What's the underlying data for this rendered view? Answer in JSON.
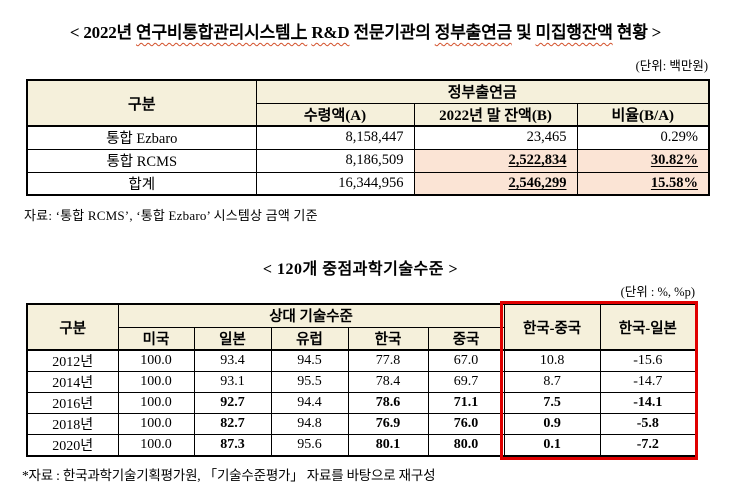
{
  "table1": {
    "title_segments": [
      {
        "text": "< 2022년 ",
        "wavy": false
      },
      {
        "text": "연구비통합관리시스템上",
        "wavy": true
      },
      {
        "text": " ",
        "wavy": false
      },
      {
        "text": "R&D",
        "wavy": true
      },
      {
        "text": " 전문기관의 ",
        "wavy": false
      },
      {
        "text": "정부출연금",
        "wavy": true
      },
      {
        "text": " 및 ",
        "wavy": false
      },
      {
        "text": "미집행잔액",
        "wavy": true
      },
      {
        "text": " 현황 >",
        "wavy": false
      }
    ],
    "unit": "(단위: 백만원)",
    "headers": {
      "gubun": "구분",
      "group": "정부출연금",
      "received": "수령액(A)",
      "balance": "2022년 말 잔액(B)",
      "ratio": "비율(B/A)"
    },
    "rows": [
      {
        "label": "통합 Ezbaro",
        "cells": [
          {
            "v": "8,158,447"
          },
          {
            "v": "23,465"
          },
          {
            "v": "0.29%"
          }
        ]
      },
      {
        "label": "통합 RCMS",
        "cells": [
          {
            "v": "8,186,509"
          },
          {
            "v": "2,522,834",
            "hl": true
          },
          {
            "v": "30.82%",
            "hl": true
          }
        ]
      },
      {
        "label": "합계",
        "cells": [
          {
            "v": "16,344,956"
          },
          {
            "v": "2,546,299",
            "hl": true
          },
          {
            "v": "15.58%",
            "hl": true
          }
        ]
      }
    ],
    "source": "자료:  ‘통합 RCMS’, ‘통합 Ezbaro’ 시스템상 금액 기준",
    "highlight_color": "#fbe4d5",
    "header_color": "#f5f0db"
  },
  "table2": {
    "title": "< 120개 중점과학기술수준 >",
    "unit": "(단위 : %, %p)",
    "headers": {
      "gubun": "구분",
      "relative": "상대 기술수준",
      "countries": [
        "미국",
        "일본",
        "유럽",
        "한국",
        "중국"
      ],
      "kr_cn": "한국-중국",
      "kr_jp": "한국-일본"
    },
    "rows": [
      {
        "label": "2012년",
        "cells": [
          {
            "v": "100.0"
          },
          {
            "v": "93.4"
          },
          {
            "v": "94.5"
          },
          {
            "v": "77.8"
          },
          {
            "v": "67.0"
          },
          {
            "v": "10.8"
          },
          {
            "v": "-15.6"
          }
        ]
      },
      {
        "label": "2014년",
        "cells": [
          {
            "v": "100.0"
          },
          {
            "v": "93.1"
          },
          {
            "v": "95.5"
          },
          {
            "v": "78.4"
          },
          {
            "v": "69.7"
          },
          {
            "v": "8.7"
          },
          {
            "v": "-14.7"
          }
        ]
      },
      {
        "label": "2016년",
        "cells": [
          {
            "v": "100.0"
          },
          {
            "v": "92.7",
            "b": true
          },
          {
            "v": "94.4"
          },
          {
            "v": "78.6",
            "b": true
          },
          {
            "v": "71.1",
            "b": true
          },
          {
            "v": "7.5",
            "b": true
          },
          {
            "v": "-14.1",
            "b": true
          }
        ]
      },
      {
        "label": "2018년",
        "cells": [
          {
            "v": "100.0"
          },
          {
            "v": "82.7",
            "b": true
          },
          {
            "v": "94.8"
          },
          {
            "v": "76.9",
            "b": true
          },
          {
            "v": "76.0",
            "b": true
          },
          {
            "v": "0.9",
            "b": true
          },
          {
            "v": "-5.8",
            "b": true
          }
        ]
      },
      {
        "label": "2020년",
        "cells": [
          {
            "v": "100.0"
          },
          {
            "v": "87.3",
            "b": true
          },
          {
            "v": "95.6"
          },
          {
            "v": "80.1",
            "b": true
          },
          {
            "v": "80.0",
            "b": true
          },
          {
            "v": "0.1",
            "b": true
          },
          {
            "v": "-7.2",
            "b": true
          }
        ]
      }
    ],
    "source": "*자료 : 한국과학기술기획평가원, 「기술수준평가」 자료를 바탕으로 재구성",
    "red_box_color": "#e00000"
  }
}
